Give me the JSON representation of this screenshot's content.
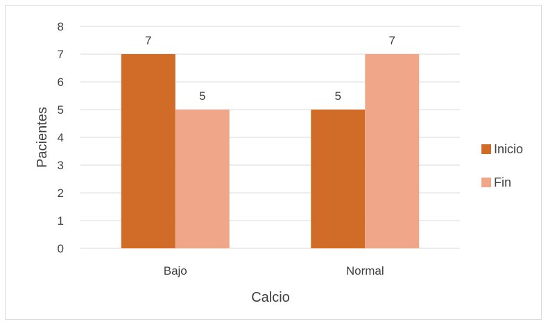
{
  "chart_data": {
    "type": "bar",
    "title": "",
    "xlabel": "Calcio",
    "ylabel": "Pacientes",
    "categories": [
      "Bajo",
      "Normal"
    ],
    "series": [
      {
        "name": "Inicio",
        "values": [
          7,
          5
        ],
        "color": "#d06b28"
      },
      {
        "name": "Fin",
        "values": [
          5,
          7
        ],
        "color": "#f0a789"
      }
    ],
    "ylim": [
      0,
      8
    ],
    "yticks": [
      "0",
      "1",
      "2",
      "3",
      "4",
      "5",
      "6",
      "7",
      "8"
    ],
    "grid": true,
    "legend_position": "right",
    "data_labels": true
  }
}
